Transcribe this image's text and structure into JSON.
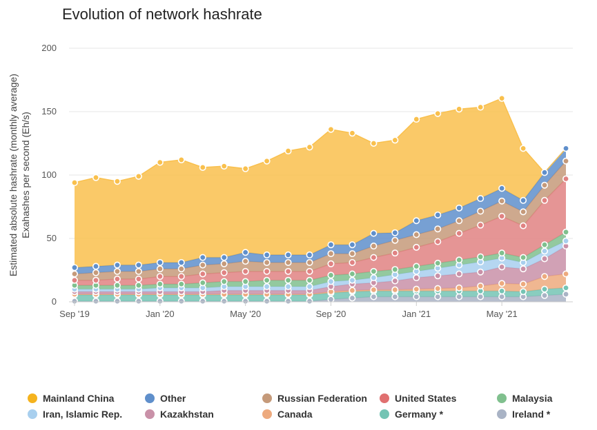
{
  "chart_data": {
    "type": "area",
    "stacked": true,
    "title": "Evolution of network hashrate",
    "ylabel_line1": "Estimated absolute hashrate (monthly average)",
    "ylabel_line2": "Exahashes per second (Eh/s)",
    "ylim": [
      0,
      200
    ],
    "yticks": [
      0,
      50,
      100,
      150,
      200
    ],
    "x": [
      "2019-09",
      "2019-10",
      "2019-11",
      "2019-12",
      "2020-01",
      "2020-02",
      "2020-03",
      "2020-04",
      "2020-05",
      "2020-06",
      "2020-07",
      "2020-08",
      "2020-09",
      "2020-10",
      "2020-11",
      "2020-12",
      "2021-01",
      "2021-02",
      "2021-03",
      "2021-04",
      "2021-05",
      "2021-06",
      "2021-07",
      "2021-08"
    ],
    "xticks": [
      {
        "index": 0,
        "label": "Sep '19"
      },
      {
        "index": 4,
        "label": "Jan '20"
      },
      {
        "index": 8,
        "label": "May '20"
      },
      {
        "index": 12,
        "label": "Sep '20"
      },
      {
        "index": 16,
        "label": "Jan '21"
      },
      {
        "index": 20,
        "label": "May '21"
      }
    ],
    "grid": "horizontal",
    "legend_position": "bottom",
    "series": [
      {
        "name": "Ireland *",
        "color": "#a9b3c5",
        "values": [
          0.5,
          0.5,
          0.5,
          0.5,
          0.5,
          0.5,
          0.5,
          0.5,
          0.5,
          0.5,
          0.5,
          0.5,
          2,
          3,
          4,
          4,
          4,
          4,
          4,
          4,
          4,
          4,
          5,
          6
        ]
      },
      {
        "name": "Germany *",
        "color": "#74c4b4",
        "values": [
          5,
          5,
          5,
          5,
          5,
          5,
          5,
          5,
          5,
          5,
          5,
          5,
          5,
          5,
          4.5,
          4.5,
          4.5,
          4.5,
          4.5,
          4.5,
          4.5,
          4,
          5,
          5
        ]
      },
      {
        "name": "Canada",
        "color": "#edaa7e",
        "values": [
          0.5,
          0.5,
          0.5,
          0.5,
          0.5,
          0.5,
          0.5,
          0.5,
          0.5,
          0.5,
          0.5,
          0.5,
          1,
          1,
          1,
          1,
          1.5,
          2,
          2.5,
          4,
          6,
          6,
          10,
          11
        ]
      },
      {
        "name": "Kazakhstan",
        "color": "#c991a8",
        "values": [
          2,
          2,
          2,
          2,
          2,
          2,
          2,
          3,
          3,
          3,
          3,
          3,
          4,
          5,
          5.5,
          7,
          9,
          10,
          11,
          11,
          13,
          12,
          14,
          22
        ]
      },
      {
        "name": "Iran, Islamic Rep.",
        "color": "#a8cfee",
        "values": [
          2,
          2,
          2,
          2,
          3,
          3,
          3,
          3,
          3,
          3,
          3,
          3,
          4,
          3,
          4,
          5,
          5,
          6,
          7,
          8,
          7,
          5,
          6,
          4
        ]
      },
      {
        "name": "Malaysia",
        "color": "#80c08e",
        "values": [
          3,
          3,
          3,
          3,
          3,
          3,
          4,
          4,
          4,
          5,
          5,
          5,
          5,
          5,
          5,
          4,
          4,
          4,
          4,
          4,
          4,
          4,
          5,
          7
        ]
      },
      {
        "name": "United States",
        "color": "#e08282",
        "values": [
          4,
          4,
          5,
          5,
          6,
          6,
          7,
          7,
          8,
          7,
          7,
          7,
          9,
          9,
          11,
          13,
          15,
          17,
          21,
          25,
          29,
          25,
          35,
          42
        ]
      },
      {
        "name": "Russian Federation",
        "color": "#c59a7a",
        "values": [
          5,
          6,
          6,
          6,
          6,
          6,
          7,
          7,
          8,
          7,
          7,
          7,
          8,
          7,
          9,
          10,
          10,
          10,
          10,
          11,
          12,
          11,
          12,
          14
        ]
      },
      {
        "name": "Other",
        "color": "#5f8fcb",
        "values": [
          5,
          5,
          5,
          5,
          5,
          5,
          6,
          5,
          7,
          6,
          6,
          6,
          7,
          7,
          10,
          6,
          11,
          11,
          10,
          10,
          10,
          9,
          10,
          10
        ]
      },
      {
        "name": "Mainland China",
        "color": "#f9c04d",
        "values": [
          67,
          70,
          66,
          70,
          79,
          81,
          71,
          72,
          66,
          74,
          82,
          85,
          91,
          88,
          71,
          73,
          80,
          80,
          78,
          72,
          71,
          41,
          0,
          0
        ]
      }
    ]
  },
  "legend": [
    {
      "label": "Mainland China",
      "color": "#f5b31e"
    },
    {
      "label": "Other",
      "color": "#5f8fcb"
    },
    {
      "label": "Russian Federation",
      "color": "#c59a7a"
    },
    {
      "label": "United States",
      "color": "#e07070"
    },
    {
      "label": "Malaysia",
      "color": "#80c08e"
    },
    {
      "label": "Iran, Islamic Rep.",
      "color": "#a8cfee"
    },
    {
      "label": "Kazakhstan",
      "color": "#c991a8"
    },
    {
      "label": "Canada",
      "color": "#edaa7e"
    },
    {
      "label": "Germany *",
      "color": "#74c4b4"
    },
    {
      "label": "Ireland *",
      "color": "#a9b3c5"
    }
  ]
}
